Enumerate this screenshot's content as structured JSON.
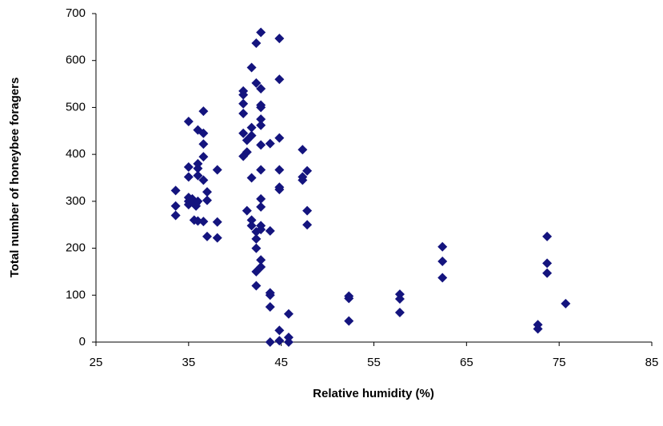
{
  "chart_data": {
    "type": "scatter",
    "x_label": "Relative humidity (%)",
    "y_label": "Total number of honeybee foragers",
    "xlim": [
      25,
      85
    ],
    "xticks": [
      25,
      35,
      45,
      55,
      65,
      75,
      85
    ],
    "ylim": [
      0,
      700
    ],
    "yticks": [
      0,
      100,
      200,
      300,
      400,
      500,
      600,
      700
    ],
    "grid": false,
    "series": [
      {
        "color": "#14147e",
        "x": [
          33.6,
          33.6,
          33.6,
          35,
          35,
          35,
          35,
          35,
          35,
          35.4,
          35.4,
          35.6,
          35.8,
          35.8,
          36,
          36,
          36,
          36,
          36,
          36,
          36.6,
          36.6,
          36.6,
          36.6,
          36.6,
          36.6,
          37,
          37,
          37,
          38.1,
          38.1,
          38.1,
          40.9,
          40.9,
          40.9,
          40.9,
          40.9,
          40.9,
          41.3,
          41.3,
          41.3,
          41.8,
          41.8,
          41.8,
          41.8,
          41.8,
          41.8,
          42.3,
          42.3,
          42.3,
          42.3,
          42.3,
          42.3,
          42.3,
          42.8,
          42.8,
          42.8,
          42.8,
          42.8,
          42.8,
          42.8,
          42.8,
          42.8,
          42.8,
          42.8,
          42.8,
          42.8,
          42.8,
          43.8,
          43.8,
          43.8,
          43.8,
          43.8,
          43.8,
          44.8,
          44.8,
          44.8,
          44.8,
          44.8,
          44.8,
          44.8,
          44.8,
          45.8,
          45.8,
          45.8,
          47.3,
          47.3,
          47.3,
          47.8,
          47.8,
          47.8,
          52.3,
          52.3,
          52.3,
          57.8,
          57.8,
          57.8,
          62.4,
          62.4,
          62.4,
          72.7,
          72.7,
          73.7,
          73.7,
          73.7,
          75.7
        ],
        "y": [
          323,
          290,
          270,
          470,
          373,
          352,
          308,
          300,
          293,
          305,
          300,
          260,
          295,
          290,
          452,
          380,
          370,
          355,
          300,
          258,
          492,
          445,
          422,
          395,
          345,
          257,
          320,
          302,
          225,
          367,
          256,
          222,
          535,
          527,
          508,
          487,
          445,
          396,
          405,
          280,
          430,
          585,
          457,
          440,
          350,
          260,
          248,
          637,
          552,
          235,
          220,
          200,
          150,
          120,
          660,
          540,
          505,
          500,
          475,
          462,
          420,
          367,
          305,
          288,
          248,
          175,
          160,
          240,
          423,
          237,
          105,
          100,
          75,
          0,
          647,
          560,
          435,
          367,
          330,
          325,
          25,
          3,
          60,
          10,
          0,
          410,
          352,
          345,
          365,
          280,
          250,
          98,
          93,
          45,
          102,
          92,
          63,
          203,
          172,
          137,
          37,
          28,
          225,
          168,
          147,
          82
        ]
      }
    ]
  }
}
